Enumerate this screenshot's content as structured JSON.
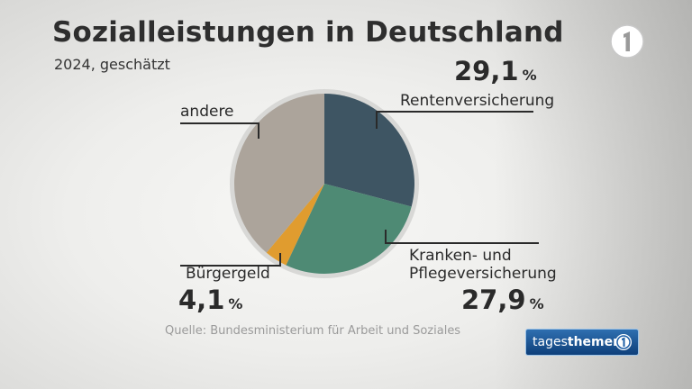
{
  "header": {
    "title": "Sozialleistungen in Deutschland",
    "subtitle": "2024, geschätzt"
  },
  "logo": {
    "icon": "ard-one-logo-icon"
  },
  "labels": {
    "rente": "Rentenversicherung",
    "kranken_line1": "Kranken- und",
    "kranken_line2": "Pflegeversicherung",
    "buerger": "Bürgergeld",
    "andere": "andere",
    "rente_value": "29,1",
    "kranken_value": "27,9",
    "buerger_value": "4,1",
    "unit": "%"
  },
  "footer": {
    "source": "Quelle: Bundesministerium für Arbeit und Soziales",
    "brand_prefix": "tages",
    "brand_suffix": "themen"
  },
  "colors": {
    "rente": "#3e5563",
    "kranken": "#4e8a74",
    "buerger": "#e09c2f",
    "andere": "#aca49b",
    "ring": "#d8d8d6"
  },
  "chart_data": {
    "type": "pie",
    "title": "Sozialleistungen in Deutschland",
    "subtitle": "2024, geschätzt",
    "unit": "%",
    "slices": [
      {
        "name": "Rentenversicherung",
        "value": 29.1,
        "colorKey": "rente"
      },
      {
        "name": "Kranken- und Pflegeversicherung",
        "value": 27.9,
        "colorKey": "kranken"
      },
      {
        "name": "Bürgergeld",
        "value": 4.1,
        "colorKey": "buerger"
      },
      {
        "name": "andere",
        "value": 38.9,
        "colorKey": "andere"
      }
    ]
  }
}
